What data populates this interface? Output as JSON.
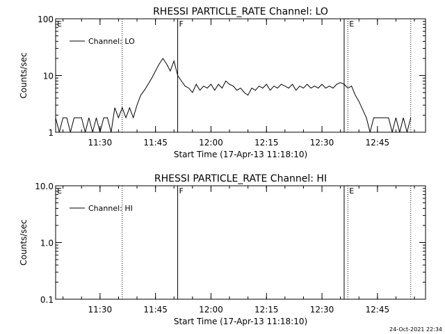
{
  "chart_data": [
    {
      "type": "line",
      "title": "RHESSI PARTICLE_RATE Channel: LO",
      "xlabel": "Start Time (17-Apr-13 11:18:10)",
      "ylabel": "Counts/sec",
      "yscale": "log",
      "xlim": [
        "11:18",
        "12:58"
      ],
      "ylim": [
        1,
        100
      ],
      "x_ticks": [
        "11:30",
        "11:45",
        "12:00",
        "12:15",
        "12:30",
        "12:45"
      ],
      "y_ticks": [
        "1",
        "10",
        "100"
      ],
      "legend": {
        "position": "top-left",
        "entries": [
          "Channel: LO"
        ]
      },
      "series": [
        {
          "name": "Channel: LO",
          "x": [
            "11:18",
            "11:19",
            "11:20",
            "11:21",
            "11:22",
            "11:23",
            "11:24",
            "11:25",
            "11:26",
            "11:27",
            "11:28",
            "11:29",
            "11:30",
            "11:31",
            "11:32",
            "11:33",
            "11:34",
            "11:35",
            "11:36",
            "11:37",
            "11:38",
            "11:39",
            "11:40",
            "11:41",
            "11:42",
            "11:43",
            "11:44",
            "11:45",
            "11:46",
            "11:47",
            "11:48",
            "11:49",
            "11:50",
            "11:51",
            "11:52",
            "11:53",
            "11:54",
            "11:55",
            "11:56",
            "11:57",
            "11:58",
            "11:59",
            "12:00",
            "12:01",
            "12:02",
            "12:03",
            "12:04",
            "12:05",
            "12:06",
            "12:07",
            "12:08",
            "12:09",
            "12:10",
            "12:11",
            "12:12",
            "12:13",
            "12:14",
            "12:15",
            "12:16",
            "12:17",
            "12:18",
            "12:19",
            "12:20",
            "12:21",
            "12:22",
            "12:23",
            "12:24",
            "12:25",
            "12:26",
            "12:27",
            "12:28",
            "12:29",
            "12:30",
            "12:31",
            "12:32",
            "12:33",
            "12:34",
            "12:35",
            "12:36",
            "12:37",
            "12:38",
            "12:39",
            "12:40",
            "12:41",
            "12:42",
            "12:43",
            "12:44",
            "12:45",
            "12:46",
            "12:47",
            "12:48",
            "12:49",
            "12:50",
            "12:51",
            "12:52",
            "12:53",
            "12:54"
          ],
          "values": [
            1.8,
            1,
            1.8,
            1.8,
            1,
            1.8,
            1.8,
            1.8,
            1,
            1.8,
            1,
            1.8,
            1,
            1.8,
            1.8,
            1,
            2.7,
            1.8,
            2.7,
            1.8,
            2.7,
            1.8,
            3,
            4.5,
            5.5,
            7,
            9,
            12,
            16,
            20,
            16,
            12,
            18,
            10,
            8,
            6.5,
            6,
            5,
            7,
            5.5,
            6.5,
            6,
            7,
            5.5,
            7,
            6,
            8,
            7,
            6.5,
            5.5,
            6,
            5,
            4.5,
            6,
            5.5,
            6.5,
            6,
            7,
            5.5,
            6.5,
            6,
            7,
            6.5,
            6,
            7,
            5.5,
            6.5,
            6,
            7,
            6,
            6.5,
            6,
            7,
            6,
            6.5,
            6,
            7,
            7.5,
            7,
            6,
            6.5,
            4.5,
            3.5,
            2.5,
            1.8,
            1,
            1.8,
            1.8,
            1.8,
            1.8,
            1.8,
            1,
            1.8,
            1,
            1.8,
            1,
            1.8
          ],
          "color": "#000000"
        }
      ],
      "markers": [
        {
          "label": "E",
          "time": "11:18",
          "style": "dotted"
        },
        {
          "label": "",
          "time": "11:36",
          "style": "dotted"
        },
        {
          "label": "F",
          "time": "11:51",
          "style": "solid"
        },
        {
          "label": "",
          "time": "12:36",
          "style": "solid"
        },
        {
          "label": "E",
          "time": "12:37",
          "style": "dotted"
        },
        {
          "label": "",
          "time": "12:54",
          "style": "dotted"
        }
      ]
    },
    {
      "type": "line",
      "title": "RHESSI PARTICLE_RATE Channel: HI",
      "xlabel": "Start Time (17-Apr-13 11:18:10)",
      "ylabel": "Counts/sec",
      "yscale": "log",
      "xlim": [
        "11:18",
        "12:58"
      ],
      "ylim": [
        0.1,
        10
      ],
      "x_ticks": [
        "11:30",
        "11:45",
        "12:00",
        "12:15",
        "12:30",
        "12:45"
      ],
      "y_ticks": [
        "0.1",
        "1.0",
        "10.0"
      ],
      "legend": {
        "position": "top-left",
        "entries": [
          "Channel: HI"
        ]
      },
      "series": [
        {
          "name": "Channel: HI",
          "x": [],
          "values": [],
          "color": "#000000"
        }
      ],
      "markers": [
        {
          "label": "E",
          "time": "11:18",
          "style": "dotted"
        },
        {
          "label": "",
          "time": "11:36",
          "style": "dotted"
        },
        {
          "label": "F",
          "time": "11:51",
          "style": "solid"
        },
        {
          "label": "",
          "time": "12:36",
          "style": "solid"
        },
        {
          "label": "E",
          "time": "12:37",
          "style": "dotted"
        },
        {
          "label": "",
          "time": "12:54",
          "style": "dotted"
        }
      ]
    }
  ],
  "footer": {
    "timestamp": "24-Oct-2021 22:34"
  }
}
